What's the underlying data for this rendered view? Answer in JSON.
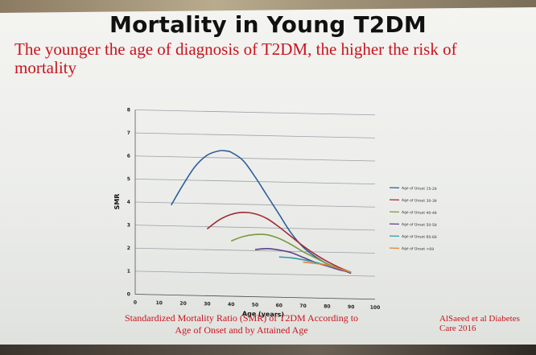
{
  "slide": {
    "title": "Mortality in Young T2DM",
    "subtitle": "The younger the age of diagnosis of T2DM, the higher the risk of mortality",
    "caption_line1": "Standardized Mortality Ratio (SMR) of T2DM According to",
    "caption_line2": "Age of Onset and by Attained Age",
    "citation": "AlSaeed et al Diabetes Care 2016"
  },
  "chart_data": {
    "type": "line",
    "xlabel": "Age (years)",
    "ylabel": "SMR",
    "xlim": [
      0,
      100
    ],
    "ylim": [
      0,
      8
    ],
    "x_ticks": [
      0,
      10,
      20,
      30,
      40,
      50,
      60,
      70,
      80,
      90,
      100
    ],
    "y_ticks": [
      0,
      1,
      2,
      3,
      4,
      5,
      6,
      7,
      8
    ],
    "grid": true,
    "legend_position": "right",
    "series": [
      {
        "name": "Age of Onset 15-29",
        "color": "#2f5e9a",
        "x": [
          15,
          20,
          25,
          30,
          35,
          38,
          40,
          45,
          50,
          55,
          60,
          65,
          70,
          75,
          80,
          85,
          90
        ],
        "y": [
          3.9,
          4.8,
          5.6,
          6.1,
          6.3,
          6.3,
          6.25,
          5.9,
          5.2,
          4.4,
          3.6,
          2.8,
          2.2,
          1.8,
          1.5,
          1.3,
          1.1
        ]
      },
      {
        "name": "Age of Onset 30-39",
        "color": "#a02b33",
        "x": [
          30,
          35,
          40,
          45,
          50,
          55,
          60,
          65,
          70,
          75,
          80,
          85,
          90
        ],
        "y": [
          2.9,
          3.3,
          3.55,
          3.65,
          3.6,
          3.4,
          3.05,
          2.65,
          2.25,
          1.9,
          1.6,
          1.35,
          1.15
        ]
      },
      {
        "name": "Age of Onset 40-49",
        "color": "#7a9a3e",
        "x": [
          40,
          45,
          50,
          55,
          60,
          65,
          70,
          75,
          80,
          85,
          90
        ],
        "y": [
          2.4,
          2.6,
          2.7,
          2.7,
          2.55,
          2.3,
          2.0,
          1.75,
          1.5,
          1.3,
          1.15
        ]
      },
      {
        "name": "Age of Onset 50-59",
        "color": "#5b3f8a",
        "x": [
          50,
          55,
          60,
          65,
          70,
          75,
          80,
          85,
          90
        ],
        "y": [
          2.05,
          2.1,
          2.05,
          1.95,
          1.75,
          1.55,
          1.4,
          1.25,
          1.15
        ]
      },
      {
        "name": "Age of Onset 60-69",
        "color": "#2f9aa8",
        "x": [
          60,
          65,
          70,
          75,
          80,
          85,
          90
        ],
        "y": [
          1.75,
          1.72,
          1.65,
          1.55,
          1.42,
          1.3,
          1.15
        ]
      },
      {
        "name": "Age of Onset >69",
        "color": "#e0843a",
        "x": [
          70,
          75,
          80,
          85,
          90
        ],
        "y": [
          1.55,
          1.5,
          1.45,
          1.3,
          1.15
        ]
      }
    ]
  }
}
